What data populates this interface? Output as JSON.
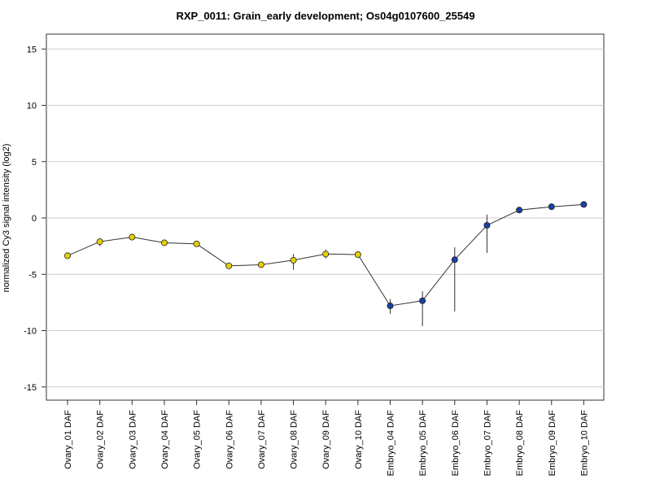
{
  "chart_data": {
    "type": "line",
    "title": "RXP_0011: Grain_early development; Os04g0107600_25549",
    "xlabel": "",
    "ylabel": "normalized Cy3 signal intensity (log2)",
    "ylim": [
      -16,
      16
    ],
    "yticks": [
      -15,
      -10,
      -5,
      0,
      5,
      10,
      15
    ],
    "grid": "horizontal",
    "categories": [
      "Ovary_01 DAF",
      "Ovary_02 DAF",
      "Ovary_03 DAF",
      "Ovary_04 DAF",
      "Ovary_05 DAF",
      "Ovary_06 DAF",
      "Ovary_07 DAF",
      "Ovary_08 DAF",
      "Ovary_09 DAF",
      "Ovary_10 DAF",
      "Embryo_04 DAF",
      "Embryo_05 DAF",
      "Embryo_06 DAF",
      "Embryo_07 DAF",
      "Embryo_08 DAF",
      "Embryo_09 DAF",
      "Embryo_10 DAF"
    ],
    "values": [
      -3.35,
      -2.1,
      -1.7,
      -2.2,
      -2.3,
      -4.25,
      -4.15,
      -3.75,
      -3.2,
      -3.25,
      -7.8,
      -7.35,
      -3.7,
      -0.65,
      0.7,
      1.0,
      1.2
    ],
    "error_low": [
      -3.5,
      -2.5,
      -1.8,
      -2.35,
      -2.45,
      -4.4,
      -4.4,
      -4.6,
      -3.6,
      -3.5,
      -8.5,
      -9.6,
      -8.3,
      -3.1,
      0.55,
      0.9,
      1.1
    ],
    "error_high": [
      -3.2,
      -1.8,
      -1.6,
      -2.05,
      -2.15,
      -4.1,
      -3.9,
      -3.2,
      -2.8,
      -3.0,
      -7.2,
      -6.5,
      -2.6,
      0.3,
      0.85,
      1.1,
      1.3
    ],
    "point_colors": [
      "#e8d000",
      "#e8d000",
      "#e8d000",
      "#e8d000",
      "#e8d000",
      "#e8d000",
      "#e8d000",
      "#e8d000",
      "#e8d000",
      "#e8d000",
      "#1a3fa8",
      "#1a3fa8",
      "#1a3fa8",
      "#1a3fa8",
      "#1a3fa8",
      "#1a3fa8",
      "#1a3fa8"
    ],
    "line_color": "#333333",
    "grid_color": "#cccccc"
  }
}
